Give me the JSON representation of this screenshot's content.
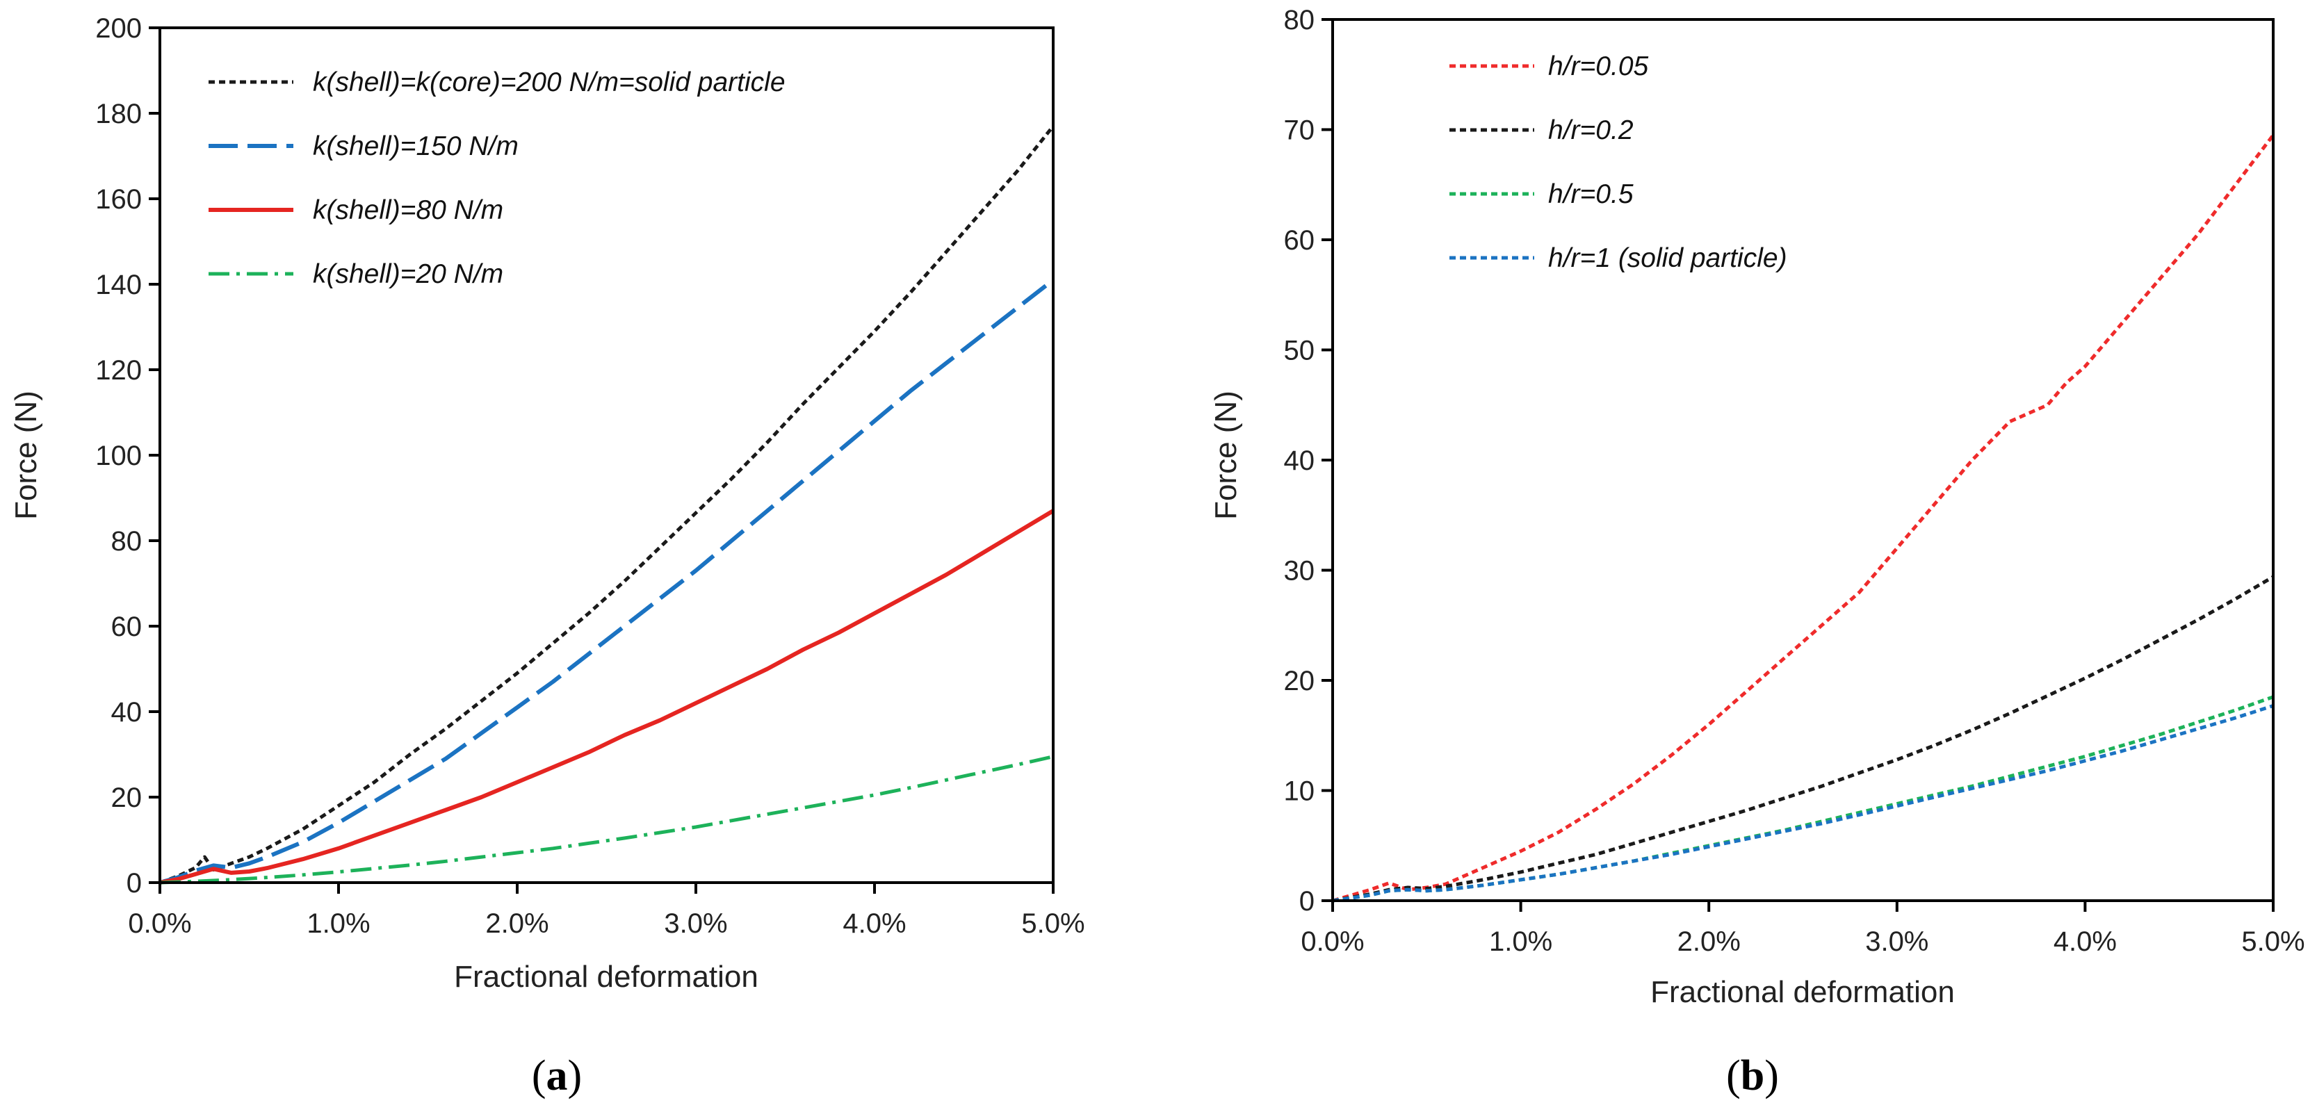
{
  "chart_data": [
    {
      "type": "line",
      "panel_label": "a",
      "xlabel": "Fractional deformation",
      "ylabel": "Force (N)",
      "xlim": [
        0,
        5
      ],
      "ylim": [
        0,
        200
      ],
      "x_ticks": [
        0,
        1,
        2,
        3,
        4,
        5
      ],
      "x_tick_labels": [
        "0.0%",
        "1.0%",
        "2.0%",
        "3.0%",
        "4.0%",
        "5.0%"
      ],
      "y_ticks": [
        0,
        20,
        40,
        60,
        80,
        100,
        120,
        140,
        160,
        180,
        200
      ],
      "y_tick_labels": [
        "0",
        "20",
        "40",
        "60",
        "80",
        "100",
        "120",
        "140",
        "160",
        "180",
        "200"
      ],
      "legend_position": "top-left",
      "series": [
        {
          "name": "k(shell)=k(core)=200 N/m=solid particle",
          "color": "#1a1a1a",
          "style": "dotted",
          "x": [
            0,
            0.1,
            0.2,
            0.25,
            0.3,
            0.4,
            0.5,
            0.6,
            0.8,
            1.0,
            1.2,
            1.4,
            1.6,
            1.8,
            2.0,
            2.2,
            2.4,
            2.6,
            2.8,
            3.0,
            3.2,
            3.4,
            3.6,
            3.8,
            4.0,
            4.2,
            4.4,
            4.6,
            4.8,
            5.0
          ],
          "y": [
            0,
            1.5,
            3.5,
            6,
            3,
            4.5,
            6,
            8,
            12.5,
            18,
            23.5,
            30,
            36,
            42.5,
            49,
            56,
            63,
            70.5,
            78.5,
            86.5,
            94.5,
            103,
            112,
            120.5,
            129,
            138,
            147.5,
            157,
            166.5,
            177
          ]
        },
        {
          "name": "k(shell)=150 N/m",
          "color": "#1b73c2",
          "style": "dashed",
          "x": [
            0,
            0.1,
            0.2,
            0.3,
            0.4,
            0.5,
            0.6,
            0.8,
            1.0,
            1.2,
            1.4,
            1.6,
            1.8,
            2.0,
            2.2,
            2.4,
            2.6,
            2.8,
            3.0,
            3.2,
            3.4,
            3.6,
            3.8,
            4.0,
            4.2,
            4.4,
            4.6,
            4.8,
            5.0
          ],
          "y": [
            0,
            1.2,
            2.8,
            4,
            3.5,
            4.5,
            6,
            9.5,
            14,
            19,
            24,
            29,
            35,
            41,
            47,
            53.5,
            60,
            66.5,
            73,
            80,
            87,
            94,
            101,
            108,
            115,
            121.5,
            128,
            134.5,
            141
          ]
        },
        {
          "name": "k(shell)=80 N/m",
          "color": "#e52521",
          "style": "solid",
          "x": [
            0,
            0.1,
            0.2,
            0.3,
            0.4,
            0.5,
            0.6,
            0.8,
            1.0,
            1.2,
            1.4,
            1.6,
            1.8,
            2.0,
            2.2,
            2.4,
            2.6,
            2.8,
            3.0,
            3.2,
            3.4,
            3.6,
            3.8,
            4.0,
            4.2,
            4.4,
            4.6,
            4.8,
            5.0
          ],
          "y": [
            0,
            0.8,
            2,
            3.2,
            2.3,
            2.6,
            3.4,
            5.5,
            8,
            11,
            14,
            17,
            20,
            23.5,
            27,
            30.5,
            34.5,
            38,
            42,
            46,
            50,
            54.5,
            58.5,
            63,
            67.5,
            72,
            77,
            82,
            87
          ]
        },
        {
          "name": "k(shell)=20 N/m",
          "color": "#1db25a",
          "style": "dashdot",
          "x": [
            0,
            0.2,
            0.4,
            0.6,
            0.8,
            1.0,
            1.2,
            1.4,
            1.6,
            1.8,
            2.0,
            2.2,
            2.4,
            2.6,
            2.8,
            3.0,
            3.2,
            3.4,
            3.6,
            3.8,
            4.0,
            4.2,
            4.4,
            4.6,
            4.8,
            5.0
          ],
          "y": [
            0,
            0.3,
            0.7,
            1.2,
            1.8,
            2.5,
            3.3,
            4.1,
            5,
            6,
            7,
            8,
            9.2,
            10.4,
            11.7,
            13,
            14.5,
            16,
            17.5,
            19,
            20.5,
            22.2,
            24,
            25.8,
            27.6,
            29.5
          ]
        }
      ]
    },
    {
      "type": "line",
      "panel_label": "b",
      "xlabel": "Fractional deformation",
      "ylabel": "Force (N)",
      "xlim": [
        0,
        5
      ],
      "ylim": [
        0,
        80
      ],
      "x_ticks": [
        0,
        1,
        2,
        3,
        4,
        5
      ],
      "x_tick_labels": [
        "0.0%",
        "1.0%",
        "2.0%",
        "3.0%",
        "4.0%",
        "5.0%"
      ],
      "y_ticks": [
        0,
        10,
        20,
        30,
        40,
        50,
        60,
        70,
        80
      ],
      "y_tick_labels": [
        "0",
        "10",
        "20",
        "30",
        "40",
        "50",
        "60",
        "70",
        "80"
      ],
      "legend_position": "top-left",
      "series": [
        {
          "name": "h/r=0.05",
          "color": "#ef2b2b",
          "style": "dotted",
          "x": [
            0,
            0.1,
            0.2,
            0.3,
            0.4,
            0.5,
            0.6,
            0.8,
            1.0,
            1.2,
            1.4,
            1.6,
            1.8,
            2.0,
            2.2,
            2.4,
            2.6,
            2.8,
            3.0,
            3.2,
            3.4,
            3.6,
            3.8,
            3.9,
            4.0,
            4.2,
            4.4,
            4.6,
            4.8,
            5.0
          ],
          "y": [
            0,
            0.5,
            1,
            1.6,
            1,
            1.2,
            1.5,
            3,
            4.5,
            6.2,
            8.3,
            10.6,
            13.2,
            16,
            19,
            22,
            25,
            28,
            32,
            36,
            40,
            43.5,
            45,
            47,
            48.5,
            52.5,
            56.5,
            60.5,
            65,
            69.5
          ]
        },
        {
          "name": "h/r=0.2",
          "color": "#1a1a1a",
          "style": "dotted",
          "x": [
            0,
            0.2,
            0.3,
            0.4,
            0.5,
            0.6,
            0.8,
            1.0,
            1.2,
            1.4,
            1.6,
            1.8,
            2.0,
            2.2,
            2.4,
            2.6,
            2.8,
            3.0,
            3.2,
            3.4,
            3.6,
            3.8,
            4.0,
            4.2,
            4.4,
            4.6,
            4.8,
            5.0
          ],
          "y": [
            0,
            0.6,
            1,
            1.2,
            1.1,
            1.3,
            1.9,
            2.6,
            3.4,
            4.2,
            5.2,
            6.2,
            7.2,
            8.2,
            9.3,
            10.4,
            11.6,
            12.8,
            14.1,
            15.5,
            17,
            18.6,
            20.2,
            21.9,
            23.7,
            25.5,
            27.4,
            29.4
          ]
        },
        {
          "name": "h/r=0.5",
          "color": "#1db25a",
          "style": "dotted",
          "x": [
            0,
            0.2,
            0.3,
            0.4,
            0.5,
            0.6,
            0.8,
            1.0,
            1.2,
            1.4,
            1.6,
            1.8,
            2.0,
            2.2,
            2.4,
            2.6,
            2.8,
            3.0,
            3.2,
            3.4,
            3.6,
            3.8,
            4.0,
            4.2,
            4.4,
            4.6,
            4.8,
            5.0
          ],
          "y": [
            0,
            0.5,
            0.9,
            1,
            0.9,
            1,
            1.4,
            1.9,
            2.4,
            3,
            3.6,
            4.3,
            5,
            5.7,
            6.4,
            7.2,
            8,
            8.8,
            9.6,
            10.4,
            11.3,
            12.2,
            13.1,
            14.1,
            15.1,
            16.2,
            17.3,
            18.5
          ]
        },
        {
          "name": "h/r=1 (solid particle)",
          "color": "#1b73c2",
          "style": "dotted",
          "x": [
            0,
            0.2,
            0.3,
            0.4,
            0.5,
            0.6,
            0.8,
            1.0,
            1.2,
            1.4,
            1.6,
            1.8,
            2.0,
            2.2,
            2.4,
            2.6,
            2.8,
            3.0,
            3.2,
            3.4,
            3.6,
            3.8,
            4.0,
            4.2,
            4.4,
            4.6,
            4.8,
            5.0
          ],
          "y": [
            0,
            0.5,
            0.9,
            1,
            0.9,
            1,
            1.4,
            1.9,
            2.4,
            3,
            3.6,
            4.2,
            4.9,
            5.6,
            6.3,
            7,
            7.8,
            8.6,
            9.4,
            10.2,
            11,
            11.8,
            12.7,
            13.6,
            14.6,
            15.6,
            16.6,
            17.7
          ]
        }
      ]
    }
  ]
}
